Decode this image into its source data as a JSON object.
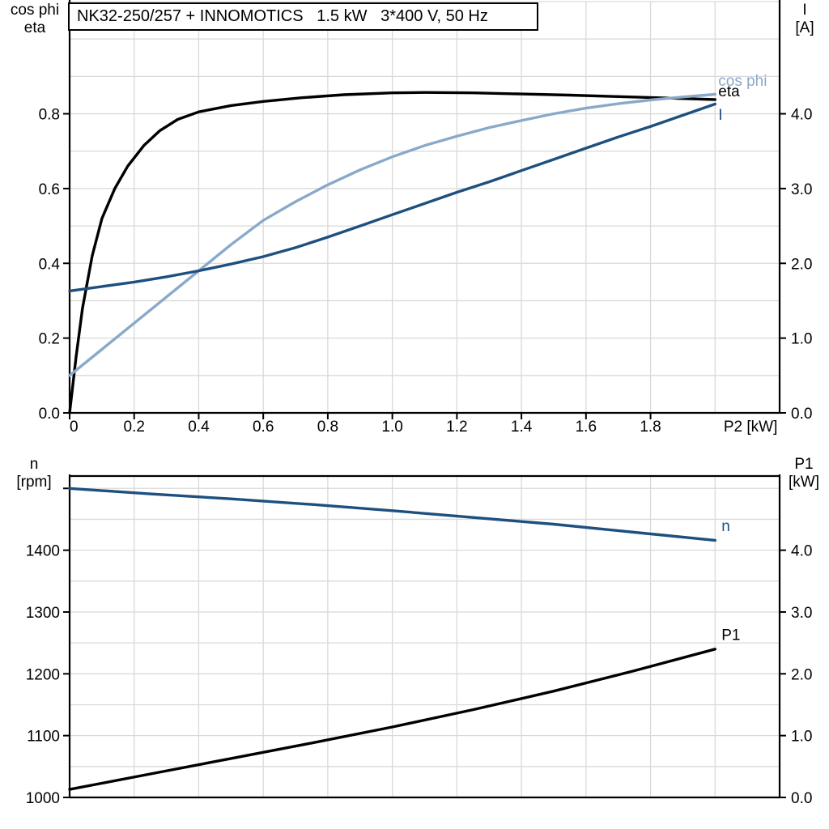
{
  "colors": {
    "eta": "#000000",
    "cos_phi": "#89A9C9",
    "current": "#1D4F7F",
    "speed": "#1D4F7F",
    "p1": "#000000",
    "grid": "#D9D9D9",
    "axis": "#000000",
    "background": "#FFFFFF"
  },
  "chart_data": [
    {
      "type": "line",
      "title": "NK32-250/257 + INNOMOTICS   1.5 kW   3*400 V, 50 Hz",
      "x_axis": {
        "label": "P2 [kW]",
        "min": 0,
        "max": 2.2,
        "grid_step": 0.2,
        "unit_label_x": 2.11,
        "tick_values": [
          0,
          0.2,
          0.4,
          0.6,
          0.8,
          1.0,
          1.2,
          1.4,
          1.6,
          1.8
        ],
        "tick_labels": [
          "0",
          "0.2",
          "0.4",
          "0.6",
          "0.8",
          "1.0",
          "1.2",
          "1.4",
          "1.6",
          "1.8"
        ]
      },
      "left_axis": {
        "header": [
          "cos phi",
          "eta"
        ],
        "min": 0,
        "max": 1.1,
        "grid_step": 0.1,
        "tick_values": [
          0,
          0.2,
          0.4,
          0.6,
          0.8
        ],
        "tick_labels": [
          "0.0",
          "0.2",
          "0.4",
          "0.6",
          "0.8"
        ]
      },
      "right_axis": {
        "header": [
          "I",
          "[A]"
        ],
        "min": 0,
        "max": 5.5,
        "tick_values": [
          0,
          1,
          2,
          3,
          4
        ],
        "tick_labels": [
          "0.0",
          "1.0",
          "2.0",
          "3.0",
          "4.0"
        ]
      },
      "series": [
        {
          "name": "eta",
          "axis": "left",
          "color": "#000000",
          "label": {
            "text": "eta",
            "x": 2.01,
            "y": 0.847
          },
          "x": [
            0,
            0.02,
            0.04,
            0.07,
            0.1,
            0.14,
            0.18,
            0.23,
            0.28,
            0.335,
            0.4,
            0.5,
            0.6,
            0.72,
            0.85,
            1.0,
            1.1,
            1.25,
            1.4,
            1.55,
            1.7,
            1.85,
            2.0
          ],
          "y": [
            0,
            0.15,
            0.28,
            0.42,
            0.52,
            0.6,
            0.66,
            0.715,
            0.755,
            0.785,
            0.805,
            0.822,
            0.833,
            0.843,
            0.851,
            0.856,
            0.857,
            0.856,
            0.853,
            0.85,
            0.846,
            0.842,
            0.838
          ]
        },
        {
          "name": "cos phi",
          "axis": "left",
          "color": "#89A9C9",
          "label": {
            "text": "cos phi",
            "x": 2.01,
            "y": 0.875
          },
          "x": [
            0,
            0.1,
            0.2,
            0.3,
            0.4,
            0.5,
            0.6,
            0.7,
            0.8,
            0.9,
            1.0,
            1.1,
            1.2,
            1.3,
            1.4,
            1.5,
            1.6,
            1.7,
            1.8,
            1.9,
            2.0
          ],
          "y": [
            0.1,
            0.17,
            0.24,
            0.31,
            0.38,
            0.45,
            0.515,
            0.565,
            0.61,
            0.65,
            0.685,
            0.715,
            0.74,
            0.763,
            0.782,
            0.8,
            0.815,
            0.827,
            0.837,
            0.845,
            0.852
          ]
        },
        {
          "name": "I",
          "axis": "right",
          "color": "#1D4F7F",
          "label": {
            "text": "I",
            "x": 2.01,
            "y": 3.92
          },
          "x": [
            0,
            0.1,
            0.2,
            0.3,
            0.4,
            0.5,
            0.6,
            0.7,
            0.8,
            0.9,
            1.0,
            1.1,
            1.2,
            1.3,
            1.4,
            1.5,
            1.6,
            1.7,
            1.8,
            1.9,
            2.0
          ],
          "y": [
            1.63,
            1.69,
            1.75,
            1.82,
            1.9,
            1.99,
            2.09,
            2.21,
            2.35,
            2.5,
            2.65,
            2.8,
            2.95,
            3.09,
            3.24,
            3.39,
            3.54,
            3.69,
            3.83,
            3.98,
            4.13
          ]
        }
      ]
    },
    {
      "type": "line",
      "x_axis": {
        "min": 0,
        "max": 2.2,
        "grid_step": 0.2
      },
      "left_axis": {
        "header": [
          "n",
          "[rpm]"
        ],
        "min": 1000,
        "max": 1520,
        "grid_step": 50,
        "tick_values": [
          1000,
          1100,
          1200,
          1300,
          1400,
          1500
        ],
        "tick_labels": [
          "1000",
          "1100",
          "1200",
          "1300",
          "1400",
          ""
        ]
      },
      "right_axis": {
        "header": [
          "P1",
          "[kW]"
        ],
        "min": 0,
        "max": 5.2,
        "tick_values": [
          0,
          1,
          2,
          3,
          4
        ],
        "tick_labels": [
          "0.0",
          "1.0",
          "2.0",
          "3.0",
          "4.0"
        ]
      },
      "series": [
        {
          "name": "n",
          "axis": "left",
          "color": "#1D4F7F",
          "label": {
            "text": "n",
            "x": 2.02,
            "y": 1431
          },
          "x": [
            0,
            0.25,
            0.5,
            0.75,
            1.0,
            1.25,
            1.5,
            1.75,
            2.0
          ],
          "y": [
            1500,
            1491,
            1483,
            1474,
            1464,
            1453,
            1442,
            1429,
            1416
          ]
        },
        {
          "name": "P1",
          "axis": "left2",
          "color": "#000000",
          "label": {
            "text": "P1",
            "x": 2.02,
            "y": 2.55
          },
          "x": [
            0,
            0.25,
            0.5,
            0.75,
            1.0,
            1.25,
            1.5,
            1.75,
            2.0
          ],
          "y": [
            0.13,
            0.38,
            0.63,
            0.88,
            1.14,
            1.42,
            1.72,
            2.05,
            2.4
          ]
        }
      ]
    }
  ]
}
